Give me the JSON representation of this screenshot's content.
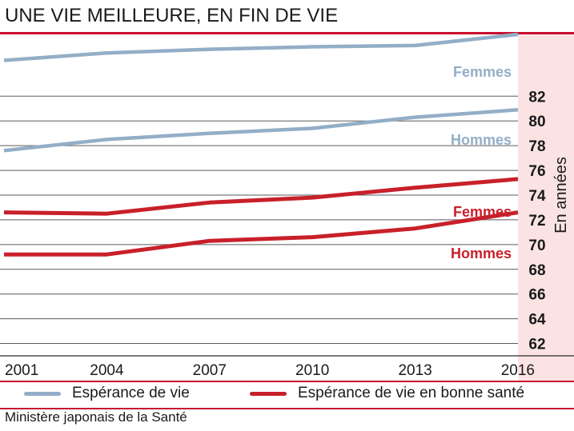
{
  "title": "UNE VIE MEILLEURE, EN FIN DE VIE",
  "source": "Ministère japonais de la Santé",
  "colors": {
    "accent": "#c8102e",
    "life": "#93aec7",
    "healthy": "#c8202a",
    "band": "#fbe3e3"
  },
  "legend": [
    {
      "label": "Espérance de vie",
      "color": "#93aec7"
    },
    {
      "label": "Espérance de vie en bonne santé",
      "color": "#c8202a"
    }
  ],
  "chart_data": {
    "type": "line",
    "x": [
      2001,
      2004,
      2007,
      2010,
      2013,
      2016
    ],
    "xtick_labels": [
      "2001",
      "2004",
      "2007",
      "2010",
      "2013",
      "2016"
    ],
    "ytick_labels": [
      "82",
      "80",
      "78",
      "76",
      "74",
      "72",
      "70",
      "68",
      "66",
      "64",
      "62"
    ],
    "ylabel": "En années",
    "ylim": [
      61,
      87
    ],
    "grid": true,
    "series": [
      {
        "name": "Femmes",
        "group": "Espérance de vie",
        "color": "#93aec7",
        "values": [
          84.9,
          85.5,
          85.8,
          86.0,
          86.1,
          87.0
        ]
      },
      {
        "name": "Hommes",
        "group": "Espérance de vie",
        "color": "#93aec7",
        "values": [
          77.6,
          78.5,
          79.0,
          79.4,
          80.3,
          80.9
        ]
      },
      {
        "name": "Femmes",
        "group": "Espérance de vie en bonne santé",
        "color": "#c8202a",
        "values": [
          72.6,
          72.5,
          73.4,
          73.8,
          74.6,
          75.3
        ]
      },
      {
        "name": "Hommes",
        "group": "Espérance de vie en bonne santé",
        "color": "#c8202a",
        "values": [
          69.2,
          69.2,
          70.3,
          70.6,
          71.3,
          72.6
        ]
      }
    ],
    "series_labels": [
      "Femmes",
      "Hommes",
      "Femmes",
      "Hommes"
    ]
  }
}
